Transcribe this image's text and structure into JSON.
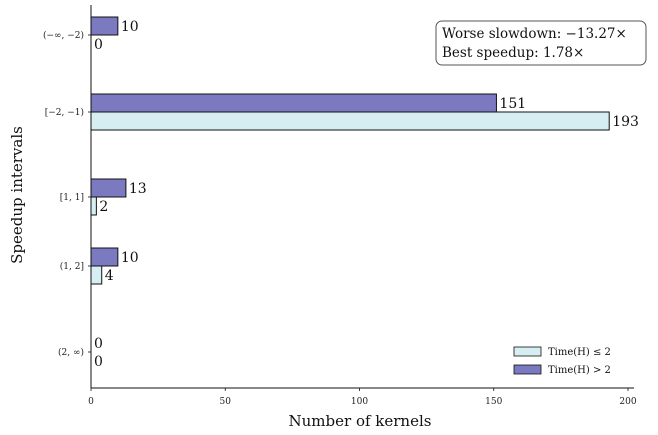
{
  "chart_data": {
    "type": "bar",
    "orientation": "horizontal",
    "categories": [
      "(−∞, −2)",
      "[−2, −1)",
      "[1, 1]",
      "(1, 2]",
      "(2, ∞)"
    ],
    "series": [
      {
        "name": "Time(H) ≤ 2",
        "values": [
          0,
          193,
          2,
          4,
          0
        ],
        "color": "#d6edf1"
      },
      {
        "name": "Time(H) > 2",
        "values": [
          10,
          151,
          13,
          10,
          0
        ],
        "color": "#7b79bf"
      }
    ],
    "xlabel": "Number of kernels",
    "ylabel": "Speedup intervals",
    "xlim": [
      0,
      200
    ],
    "xticks": [
      0,
      50,
      100,
      150,
      200
    ],
    "grid": false,
    "legend_position": "bottom-right",
    "annotation": {
      "line1_label": "Worse slowdown:",
      "line1_value": "−13.27×",
      "line2_label": "Best speedup:",
      "line2_value": "1.78×",
      "position": "top-right"
    }
  }
}
